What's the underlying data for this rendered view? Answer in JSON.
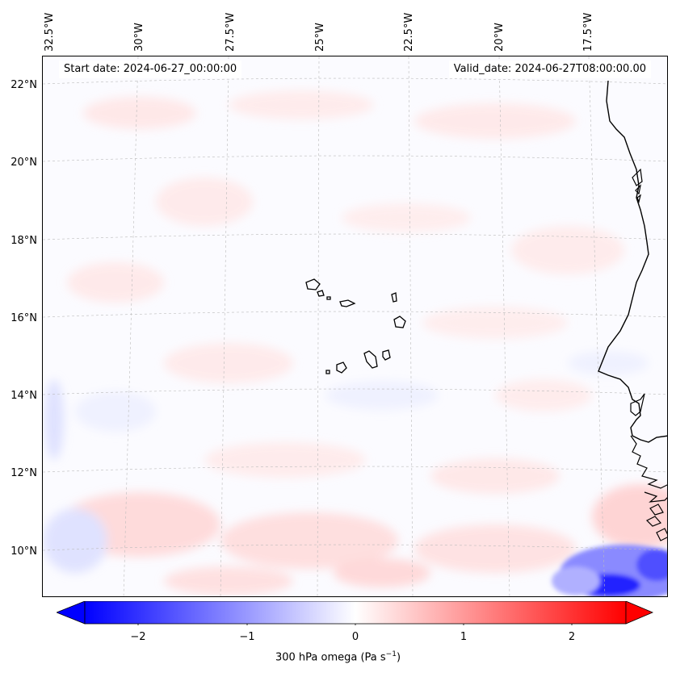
{
  "header": {
    "start_date": "Start date: 2024-06-27_00:00:00",
    "valid_date": "Valid_date: 2024-06-27T08:00:00.00"
  },
  "axes": {
    "lon_labels": [
      "32.5°W",
      "30°W",
      "27.5°W",
      "25°W",
      "22.5°W",
      "20°W",
      "17.5°W"
    ],
    "lat_labels": [
      "22°N",
      "20°N",
      "18°N",
      "16°N",
      "14°N",
      "12°N",
      "10°N"
    ]
  },
  "colorbar": {
    "variable_label": "300 hPa omega (Pa s",
    "unit_exponent": "−1",
    "unit_close": ")",
    "ticks": [
      "−2",
      "−1",
      "0",
      "1",
      "2"
    ],
    "range": [
      -2.5,
      2.5
    ],
    "low_color": "#0000ff",
    "mid_color": "#ffffff",
    "high_color": "#ff0000"
  },
  "map": {
    "region": "Cape Verde and West African coast",
    "features": [
      "coastline",
      "islands",
      "graticule"
    ]
  }
}
